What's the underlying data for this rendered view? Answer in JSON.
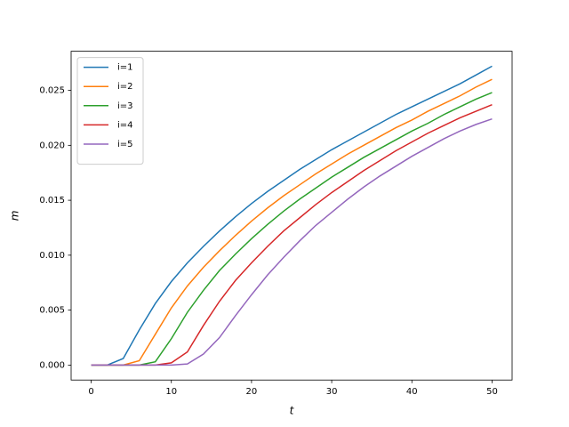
{
  "chart_data": {
    "type": "line",
    "xlabel": "t",
    "ylabel": "m",
    "x": [
      0,
      2,
      4,
      6,
      8,
      10,
      12,
      14,
      16,
      18,
      20,
      22,
      24,
      26,
      28,
      30,
      32,
      34,
      36,
      38,
      40,
      42,
      44,
      46,
      48,
      50
    ],
    "series": [
      {
        "name": "i=1",
        "color": "#1f77b4",
        "values": [
          0,
          0,
          0.0006,
          0.0032,
          0.0056,
          0.0076,
          0.0093,
          0.0108,
          0.0122,
          0.0135,
          0.0147,
          0.0158,
          0.0168,
          0.0178,
          0.0187,
          0.0196,
          0.0204,
          0.0212,
          0.022,
          0.0228,
          0.0235,
          0.0242,
          0.0249,
          0.0256,
          0.0264,
          0.0272
        ]
      },
      {
        "name": "i=2",
        "color": "#ff7f0e",
        "values": [
          0,
          0,
          0,
          0.0004,
          0.0028,
          0.0052,
          0.0072,
          0.0089,
          0.0104,
          0.0118,
          0.0131,
          0.0143,
          0.0154,
          0.0164,
          0.0174,
          0.0183,
          0.0192,
          0.02,
          0.0208,
          0.0216,
          0.0223,
          0.0231,
          0.0238,
          0.0245,
          0.0253,
          0.026
        ]
      },
      {
        "name": "i=3",
        "color": "#2ca02c",
        "values": [
          0,
          0,
          0,
          0,
          0.0003,
          0.0024,
          0.0048,
          0.0068,
          0.0086,
          0.0101,
          0.0115,
          0.0128,
          0.014,
          0.0151,
          0.0161,
          0.0171,
          0.018,
          0.0189,
          0.0197,
          0.0205,
          0.0213,
          0.022,
          0.0228,
          0.0235,
          0.0242,
          0.0248
        ]
      },
      {
        "name": "i=4",
        "color": "#d62728",
        "values": [
          0,
          0,
          0,
          0,
          0,
          0.0002,
          0.0012,
          0.0036,
          0.0058,
          0.0077,
          0.0093,
          0.0108,
          0.0122,
          0.0134,
          0.0146,
          0.0157,
          0.0167,
          0.0177,
          0.0186,
          0.0195,
          0.0203,
          0.0211,
          0.0218,
          0.0225,
          0.0231,
          0.0237
        ]
      },
      {
        "name": "i=5",
        "color": "#9467bd",
        "values": [
          0,
          0,
          0,
          0,
          0,
          0,
          0.0001,
          0.001,
          0.0025,
          0.0045,
          0.0064,
          0.0082,
          0.0098,
          0.0113,
          0.0127,
          0.0139,
          0.0151,
          0.0162,
          0.0172,
          0.0181,
          0.019,
          0.0198,
          0.0206,
          0.0213,
          0.0219,
          0.0224
        ]
      }
    ],
    "xlim": [
      -2.5,
      52.5
    ],
    "xticks": [
      0,
      10,
      20,
      30,
      40,
      50
    ],
    "ylim": [
      -0.00136,
      0.02856
    ],
    "yticks": [
      {
        "value": 0,
        "label": "0.000"
      },
      {
        "value": 0.005,
        "label": "0.005"
      },
      {
        "value": 0.01,
        "label": "0.010"
      },
      {
        "value": 0.015,
        "label": "0.015"
      },
      {
        "value": 0.02,
        "label": "0.020"
      },
      {
        "value": 0.025,
        "label": "0.025"
      }
    ],
    "legend": "upper left",
    "grid": false
  }
}
